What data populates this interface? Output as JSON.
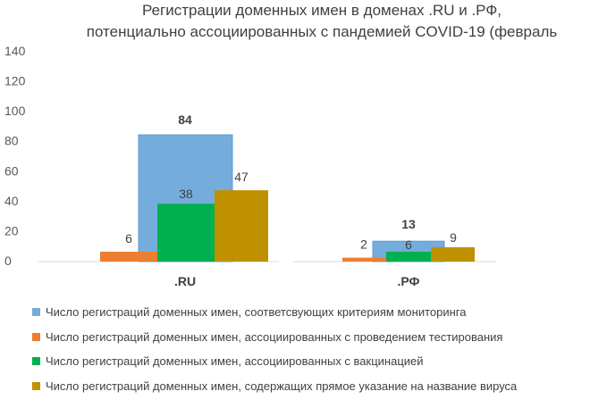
{
  "chart_data": {
    "type": "bar",
    "title": [
      "Регистрации доменных имен в доменах .RU и .РФ,",
      "потенциально ассоциированных с пандемией COVID-19 (февраль"
    ],
    "categories": [
      ".RU",
      ".РФ"
    ],
    "ylim": [
      0,
      140
    ],
    "yticks": [
      0,
      20,
      40,
      60,
      80,
      100,
      120,
      140
    ],
    "grid": false,
    "legend_position": "bottom",
    "series": [
      {
        "name": "Число регистраций доменных имен, соответсвующих критериям мониторинга",
        "color": "#74ADDC",
        "values": [
          84,
          13
        ],
        "bold_labels": true
      },
      {
        "name": "Число регистраций доменных имен, ассоциированных с проведением тестирования",
        "color": "#ED7D31",
        "values": [
          6,
          2
        ]
      },
      {
        "name": "Число регистраций доменных имен, ассоциированных с вакцинацией",
        "color": "#00B050",
        "values": [
          38,
          6
        ]
      },
      {
        "name": "Число регистраций доменных имен, содержащих прямое указание на название вируса",
        "color": "#BF9000",
        "values": [
          47,
          9
        ]
      }
    ]
  }
}
